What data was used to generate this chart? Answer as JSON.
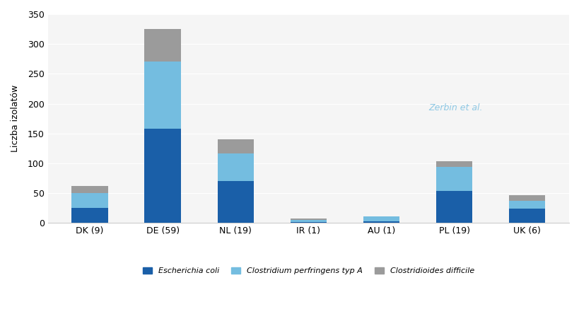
{
  "categories": [
    "DK (9)",
    "DE (59)",
    "NL (19)",
    "IR (1)",
    "AU (1)",
    "PL (19)",
    "UK (6)"
  ],
  "escherichia_coli": [
    25,
    158,
    70,
    2,
    3,
    54,
    24
  ],
  "clostridium_perfringens": [
    25,
    112,
    47,
    3,
    8,
    40,
    13
  ],
  "clostridioides_difficile": [
    12,
    55,
    23,
    2,
    0,
    9,
    9
  ],
  "color_ecoli": "#1a5fa8",
  "color_clostridium": "#74bde0",
  "color_difficile": "#9b9b9b",
  "ylabel": "Liczba izolatów",
  "ylim": [
    0,
    350
  ],
  "yticks": [
    0,
    50,
    100,
    150,
    200,
    250,
    300,
    350
  ],
  "legend_ecoli": "Escherichia coli",
  "legend_clostridium": "Clostridium perfringens typ A",
  "legend_difficile": "Clostridioides difficile",
  "watermark_text": "Zerbin et al.",
  "background_color": "#f5f5f5"
}
